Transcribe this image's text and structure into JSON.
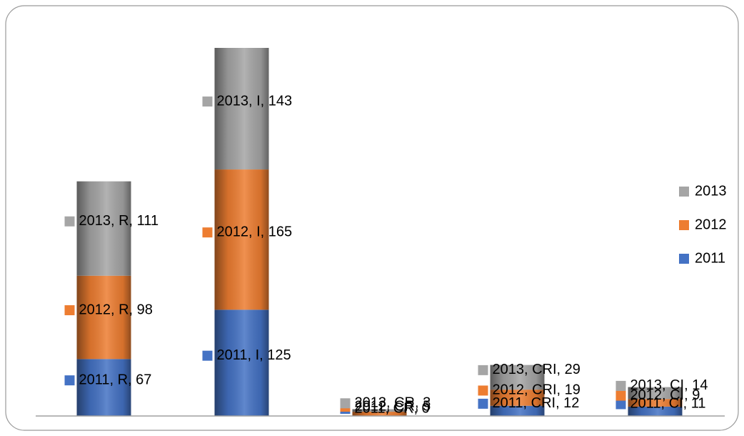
{
  "chart_data": {
    "type": "bar",
    "stacked": true,
    "legend": "right",
    "categories": [
      "R",
      "I",
      "CR",
      "CRI",
      "CI"
    ],
    "series": [
      {
        "name": "2011",
        "color": "#4472c4",
        "values": [
          67,
          125,
          0,
          12,
          11
        ],
        "value_labels": [
          "2011, R, 67",
          "2011, I, 125",
          "2011, CR, 0",
          "2011, CRI, 12",
          "2011, CI, 11"
        ]
      },
      {
        "name": "2012",
        "color": "#ed7d31",
        "values": [
          98,
          165,
          5,
          19,
          9
        ],
        "value_labels": [
          "2012, R, 98",
          "2012, I, 165",
          "2012, CR, 5",
          "2012, CRI, 19",
          "2012, CI, 9"
        ]
      },
      {
        "name": "2013",
        "color": "#a5a5a5",
        "values": [
          111,
          143,
          3,
          29,
          14
        ],
        "value_labels": [
          "2013, R, 111",
          "2013, I, 143",
          "2013, CR, 3",
          "2013, CRI, 29",
          "2013, CI, 14"
        ]
      }
    ]
  }
}
